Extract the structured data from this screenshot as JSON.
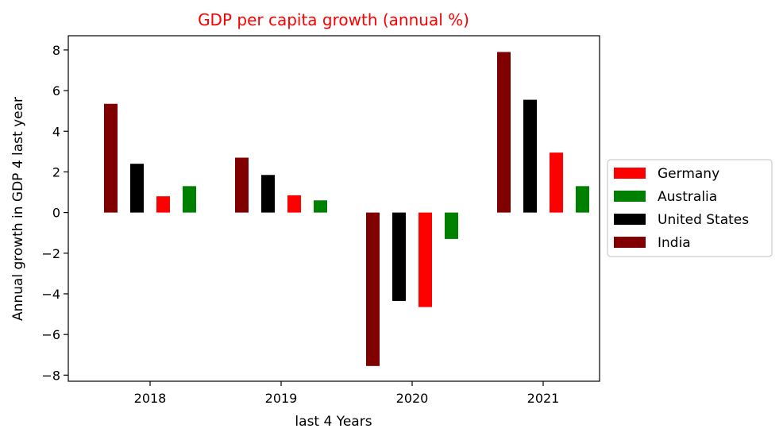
{
  "chart_data": {
    "type": "bar",
    "title": "GDP per capita growth (annual %)",
    "title_color": "#ff0000",
    "xlabel": "last 4 Years",
    "ylabel": "Annual growth in GDP 4 last year",
    "categories": [
      "2018",
      "2019",
      "2020",
      "2021"
    ],
    "ylim": [
      -8.3,
      8.7
    ],
    "yticks": [
      -8,
      -6,
      -4,
      -2,
      0,
      2,
      4,
      6,
      8
    ],
    "ytick_labels": [
      "−8",
      "−6",
      "−4",
      "−2",
      "0",
      "2",
      "4",
      "6",
      "8"
    ],
    "grid": false,
    "legend_position": "right",
    "series": [
      {
        "name": "India",
        "color": "#800000",
        "values": [
          5.35,
          2.7,
          -7.55,
          7.9
        ]
      },
      {
        "name": "United States",
        "color": "#000000",
        "values": [
          2.4,
          1.85,
          -4.35,
          5.55
        ]
      },
      {
        "name": "Germany",
        "color": "#ff0000",
        "values": [
          0.8,
          0.85,
          -4.65,
          2.95
        ]
      },
      {
        "name": "Australia",
        "color": "#008000",
        "values": [
          1.3,
          0.6,
          -1.3,
          1.3
        ]
      }
    ],
    "legend_order": [
      "Germany",
      "Australia",
      "United States",
      "India"
    ]
  }
}
